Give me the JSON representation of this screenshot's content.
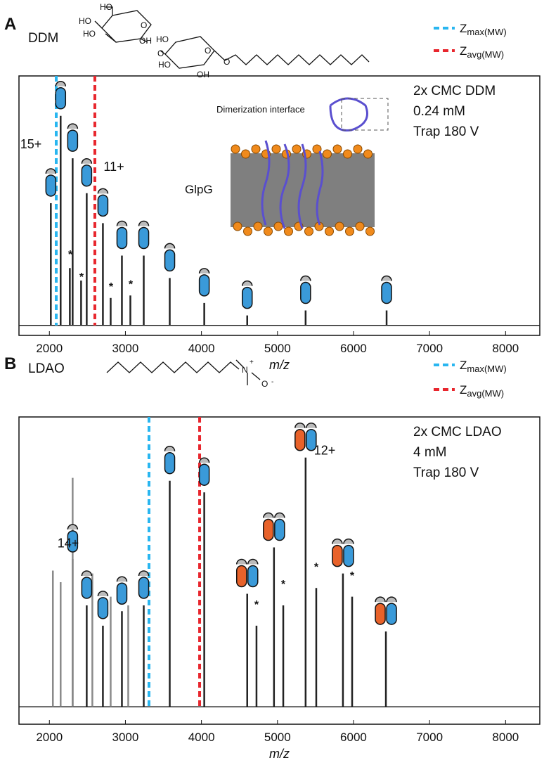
{
  "chart_data": [
    {
      "type": "spectrum",
      "panel_label": "A",
      "detergent": "DDM",
      "structure_labels": [
        "HO",
        "HO",
        "HO",
        "O",
        "OH",
        "O",
        "HO",
        "O",
        "HO",
        "OH",
        "O"
      ],
      "conditions": [
        "2x CMC DDM",
        "0.24 mM",
        "Trap 180 V"
      ],
      "inset_labels": [
        "GlpG",
        "Dimerization interface"
      ],
      "xlabel": "m/z",
      "xlim": [
        1600,
        8450
      ],
      "xticks": [
        2000,
        3000,
        4000,
        5000,
        6000,
        7000,
        8000
      ],
      "ylim": [
        -4,
        100
      ],
      "series": [
        {
          "color": "#222222",
          "x": [
            2019,
            2148,
            2306,
            2491,
            2704,
            2954,
            3241,
            3583,
            4037,
            4602,
            5370,
            6435
          ],
          "values": [
            49,
            84,
            67,
            53,
            41,
            28,
            28,
            19,
            9,
            4,
            6,
            6
          ]
        },
        {
          "color": "#222222",
          "x": [
            2269,
            2417,
            2806,
            3065
          ],
          "values": [
            23,
            18,
            11,
            12
          ]
        }
      ],
      "reference_lines": [
        {
          "name": "Z",
          "name_sub": "max(MW)",
          "x": 2090,
          "color": "#29b6f0"
        },
        {
          "name": "Z",
          "name_sub": "avg(MW)",
          "x": 2598,
          "color": "#e8262d"
        }
      ],
      "annotations": [
        {
          "text": "15+",
          "x": 1757,
          "y": 71
        },
        {
          "text": "11+",
          "x": 2848,
          "y": 62
        },
        {
          "text": "*",
          "x": 2275,
          "y": 27
        },
        {
          "text": "*",
          "x": 2423,
          "y": 18
        },
        {
          "text": "*",
          "x": 2811,
          "y": 14
        },
        {
          "text": "*",
          "x": 3070,
          "y": 15
        }
      ]
    },
    {
      "type": "spectrum",
      "panel_label": "B",
      "detergent": "LDAO",
      "structure_labels": [
        "N",
        "+",
        "O",
        "-"
      ],
      "conditions": [
        "2x CMC LDAO",
        "4 mM",
        "Trap 180 V"
      ],
      "xlabel": "m/z",
      "xlim": [
        1600,
        8450
      ],
      "xticks": [
        2000,
        3000,
        4000,
        5000,
        6000,
        7000,
        8000
      ],
      "ylim": [
        -6,
        100
      ],
      "series": [
        {
          "color": "#222222",
          "x": [
            2306,
            2491,
            2704,
            2954,
            3241,
            3583,
            4037,
            4602,
            4954,
            5370,
            5861,
            6426
          ],
          "values": [
            51,
            35,
            28,
            33,
            35,
            78,
            74,
            39,
            55,
            86,
            46,
            26
          ]
        },
        {
          "color": "#222222",
          "x": [
            4724,
            5076,
            5510,
            5982
          ],
          "values": [
            28,
            35,
            41,
            38
          ]
        },
        {
          "color": "#8a8a8a",
          "x": [
            2046,
            2148,
            2306,
            2565,
            2806,
            3037
          ],
          "values": [
            47,
            43,
            79,
            46,
            38,
            35
          ]
        }
      ],
      "reference_lines": [
        {
          "name": "Z",
          "name_sub": "max(MW)",
          "x": 3310,
          "color": "#29b6f0"
        },
        {
          "name": "Z",
          "name_sub": "avg(MW)",
          "x": 3976,
          "color": "#e8262d"
        }
      ],
      "annotations": [
        {
          "text": "14+",
          "x": 2247,
          "y": 55
        },
        {
          "text": "12+",
          "x": 5621,
          "y": 87
        },
        {
          "text": "*",
          "x": 4724,
          "y": 34
        },
        {
          "text": "*",
          "x": 5076,
          "y": 41
        },
        {
          "text": "*",
          "x": 5510,
          "y": 47
        },
        {
          "text": "*",
          "x": 5982,
          "y": 44
        }
      ]
    }
  ]
}
